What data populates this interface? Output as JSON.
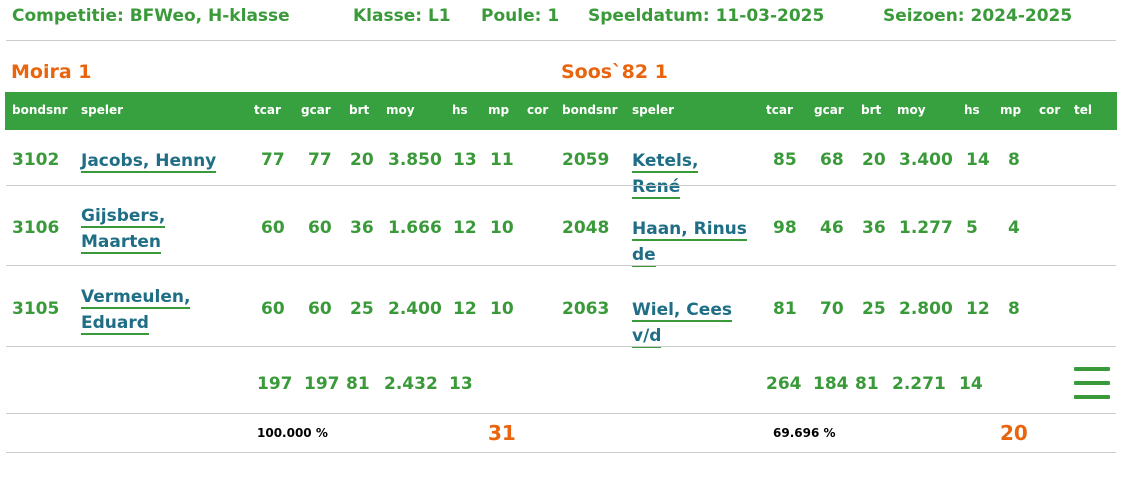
{
  "header": {
    "competitie": "Competitie: BFWeo, H-klasse",
    "klasse": "Klasse: L1",
    "poule": "Poule: 1",
    "speeldatum": "Speeldatum: 11-03-2025",
    "seizoen": "Seizoen: 2024-2025"
  },
  "teams": {
    "home": "Moira 1",
    "away": "Soos`82 1"
  },
  "columns": {
    "bondsnr": "bondsnr",
    "speler": "speler",
    "tcar": "tcar",
    "gcar": "gcar",
    "brt": "brt",
    "moy": "moy",
    "hs": "hs",
    "mp": "mp",
    "cor": "cor",
    "tel": "tel"
  },
  "rows": [
    {
      "home": {
        "bondsnr": "3102",
        "speler": "Jacobs, Henny",
        "tcar": "77",
        "gcar": "77",
        "brt": "20",
        "moy": "3.850",
        "hs": "13",
        "mp": "11"
      },
      "away": {
        "bondsnr": "2059",
        "speler": "Ketels, René",
        "tcar": "85",
        "gcar": "68",
        "brt": "20",
        "moy": "3.400",
        "hs": "14",
        "mp": "8"
      }
    },
    {
      "home": {
        "bondsnr": "3106",
        "speler": "Gijsbers, Maarten",
        "tcar": "60",
        "gcar": "60",
        "brt": "36",
        "moy": "1.666",
        "hs": "12",
        "mp": "10"
      },
      "away": {
        "bondsnr": "2048",
        "speler": "Haan, Rinus de",
        "tcar": "98",
        "gcar": "46",
        "brt": "36",
        "moy": "1.277",
        "hs": "5",
        "mp": "4"
      }
    },
    {
      "home": {
        "bondsnr": "3105",
        "speler": "Vermeulen, Eduard",
        "tcar": "60",
        "gcar": "60",
        "brt": "25",
        "moy": "2.400",
        "hs": "12",
        "mp": "10"
      },
      "away": {
        "bondsnr": "2063",
        "speler": "Wiel, Cees v/d",
        "tcar": "81",
        "gcar": "70",
        "brt": "25",
        "moy": "2.800",
        "hs": "12",
        "mp": "8"
      }
    }
  ],
  "totals": {
    "home": {
      "tcar": "197",
      "gcar": "197",
      "brt": "81",
      "moy": "2.432",
      "hs": "13",
      "pct": "100.000 %",
      "mp": "31"
    },
    "away": {
      "tcar": "264",
      "gcar": "184",
      "brt": "81",
      "moy": "2.271",
      "hs": "14",
      "pct": "69.696 %",
      "mp": "20"
    }
  },
  "menu_icon": "hamburger-menu-icon",
  "colors": {
    "green": "#37a13f",
    "orange": "#e8650e",
    "link": "#1f6e85"
  }
}
